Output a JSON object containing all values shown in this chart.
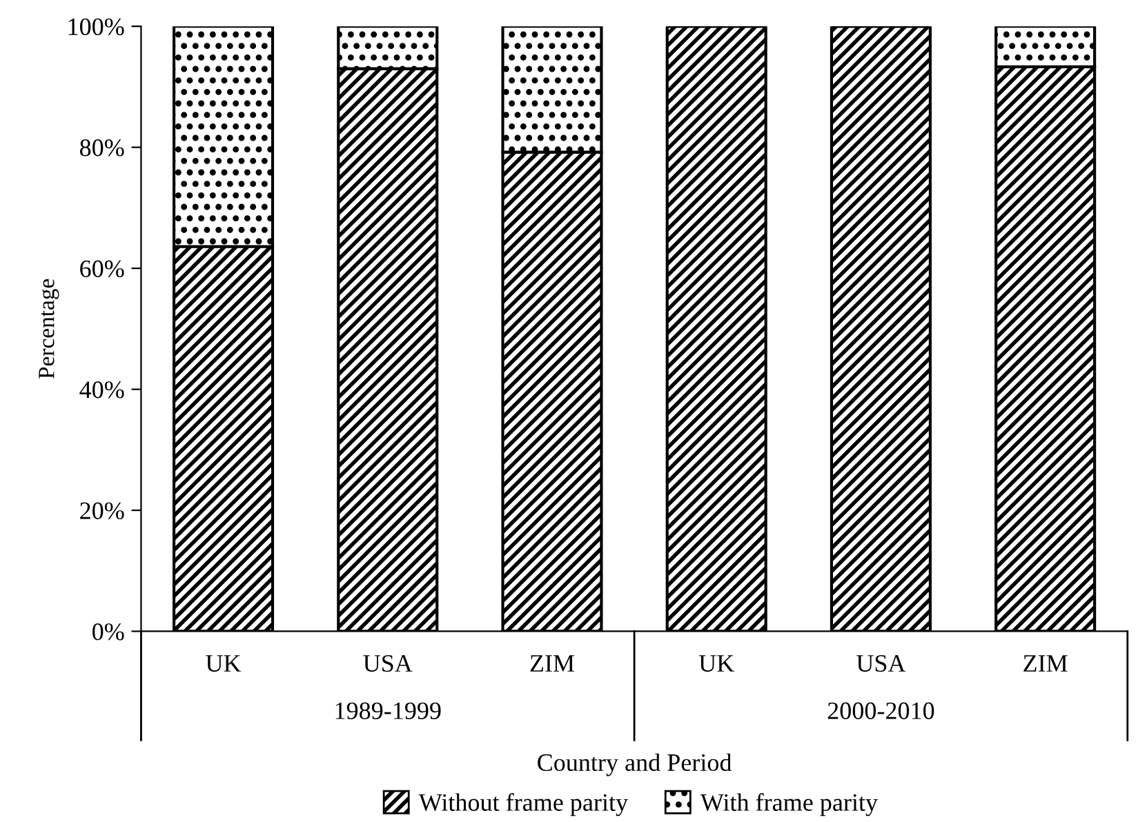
{
  "chart_data": {
    "type": "bar",
    "stacked": true,
    "xlabel": "Country and Period",
    "ylabel": "Percentage",
    "categories": [
      "UK",
      "USA",
      "ZIM",
      "UK",
      "USA",
      "ZIM"
    ],
    "series": [
      {
        "name": "Without frame parity",
        "color": "#000000",
        "values": [
          63.6,
          93,
          79.2,
          100,
          100,
          93.3
        ]
      },
      {
        "name": "With frame parity",
        "color": "#000000",
        "values": [
          36.4,
          7,
          20.8,
          0,
          0,
          6.7
        ]
      }
    ],
    "annotations": [
      "1989-1999",
      "2000-2010"
    ],
    "ylim": [
      0,
      100
    ],
    "yticks": [
      {
        "value": 0,
        "label": "0%"
      },
      {
        "value": 20,
        "label": "20%"
      },
      {
        "value": 40,
        "label": "40%"
      },
      {
        "value": 60,
        "label": "60%"
      },
      {
        "value": 80,
        "label": "80%"
      },
      {
        "value": 100,
        "label": "100%"
      }
    ],
    "legend": "bottom"
  }
}
